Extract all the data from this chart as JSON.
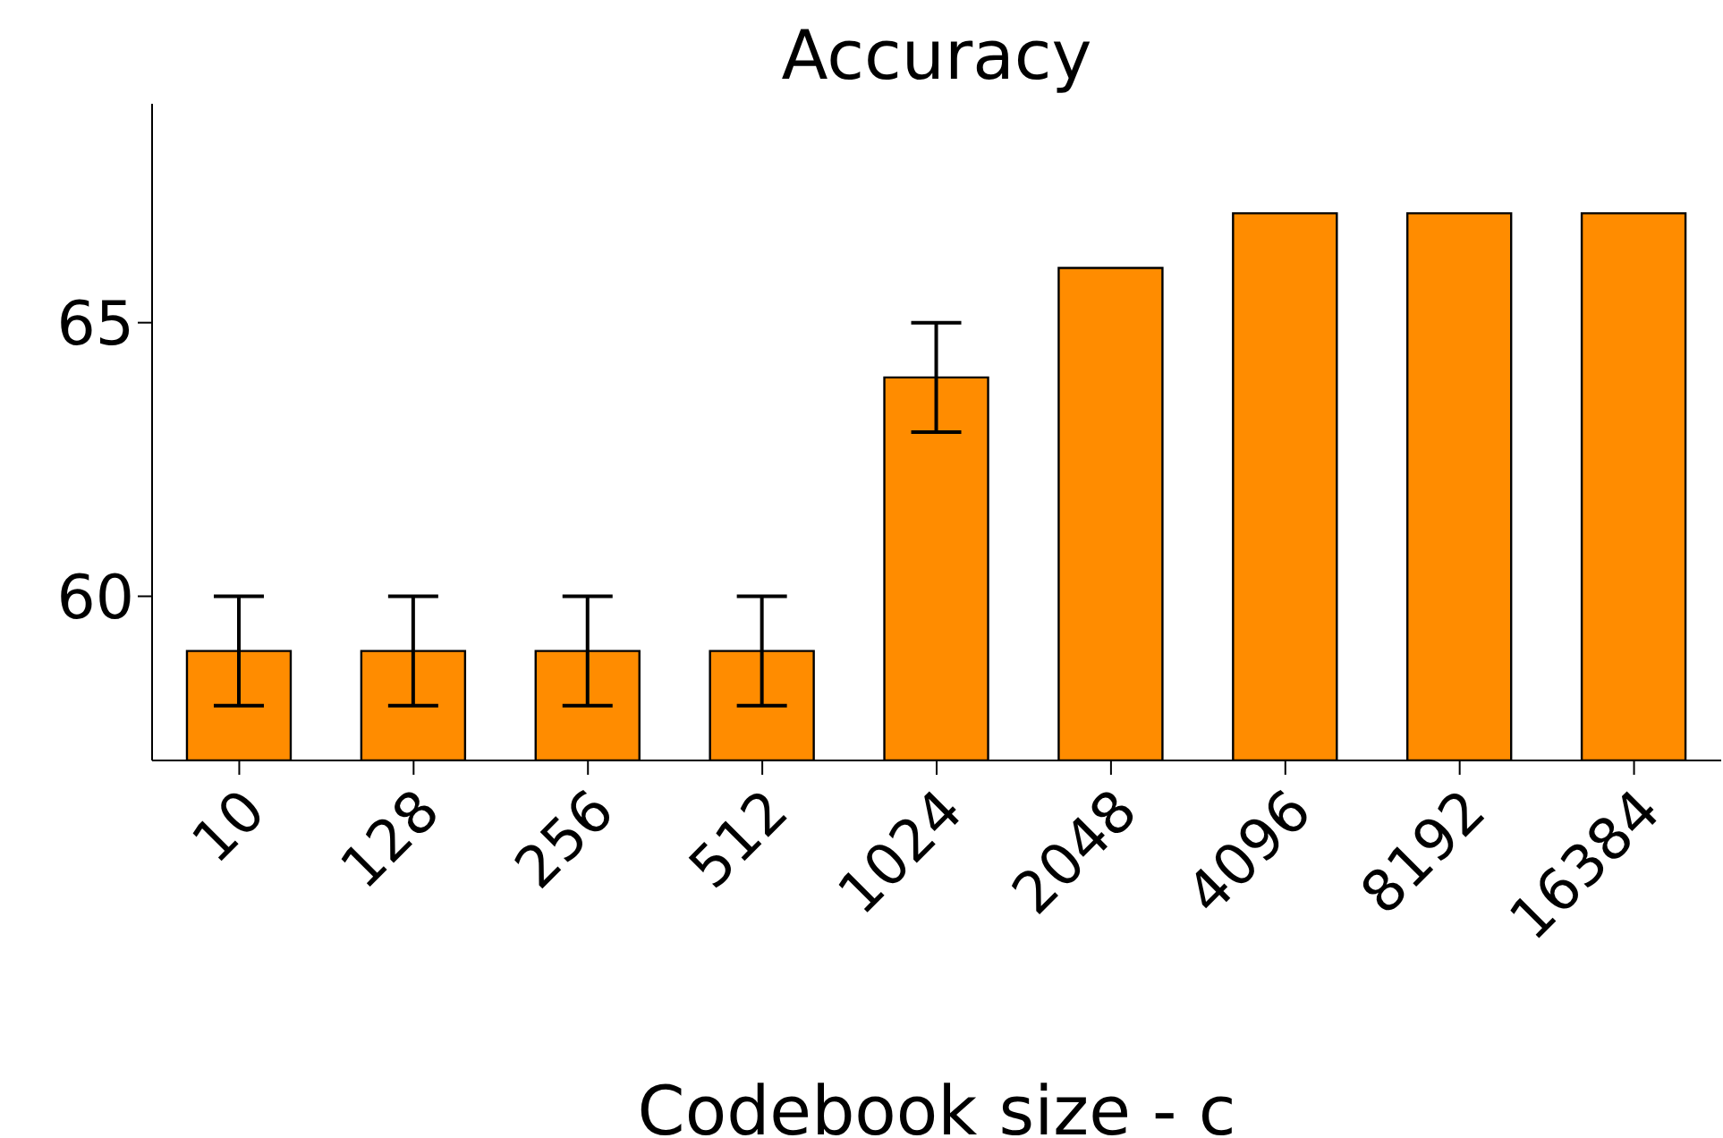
{
  "chart_data": {
    "type": "bar",
    "title": "Accuracy",
    "xlabel": "Codebook size - c",
    "categories": [
      "10",
      "128",
      "256",
      "512",
      "1024",
      "2048",
      "4096",
      "8192",
      "16384"
    ],
    "values": [
      59,
      59,
      59,
      59,
      64,
      66,
      67,
      67,
      67
    ],
    "errors": [
      1,
      1,
      1,
      1,
      1,
      0,
      0,
      0,
      0
    ],
    "color": "#ff8c00",
    "ylim": [
      57,
      69
    ],
    "yticks": [
      60,
      65
    ]
  }
}
